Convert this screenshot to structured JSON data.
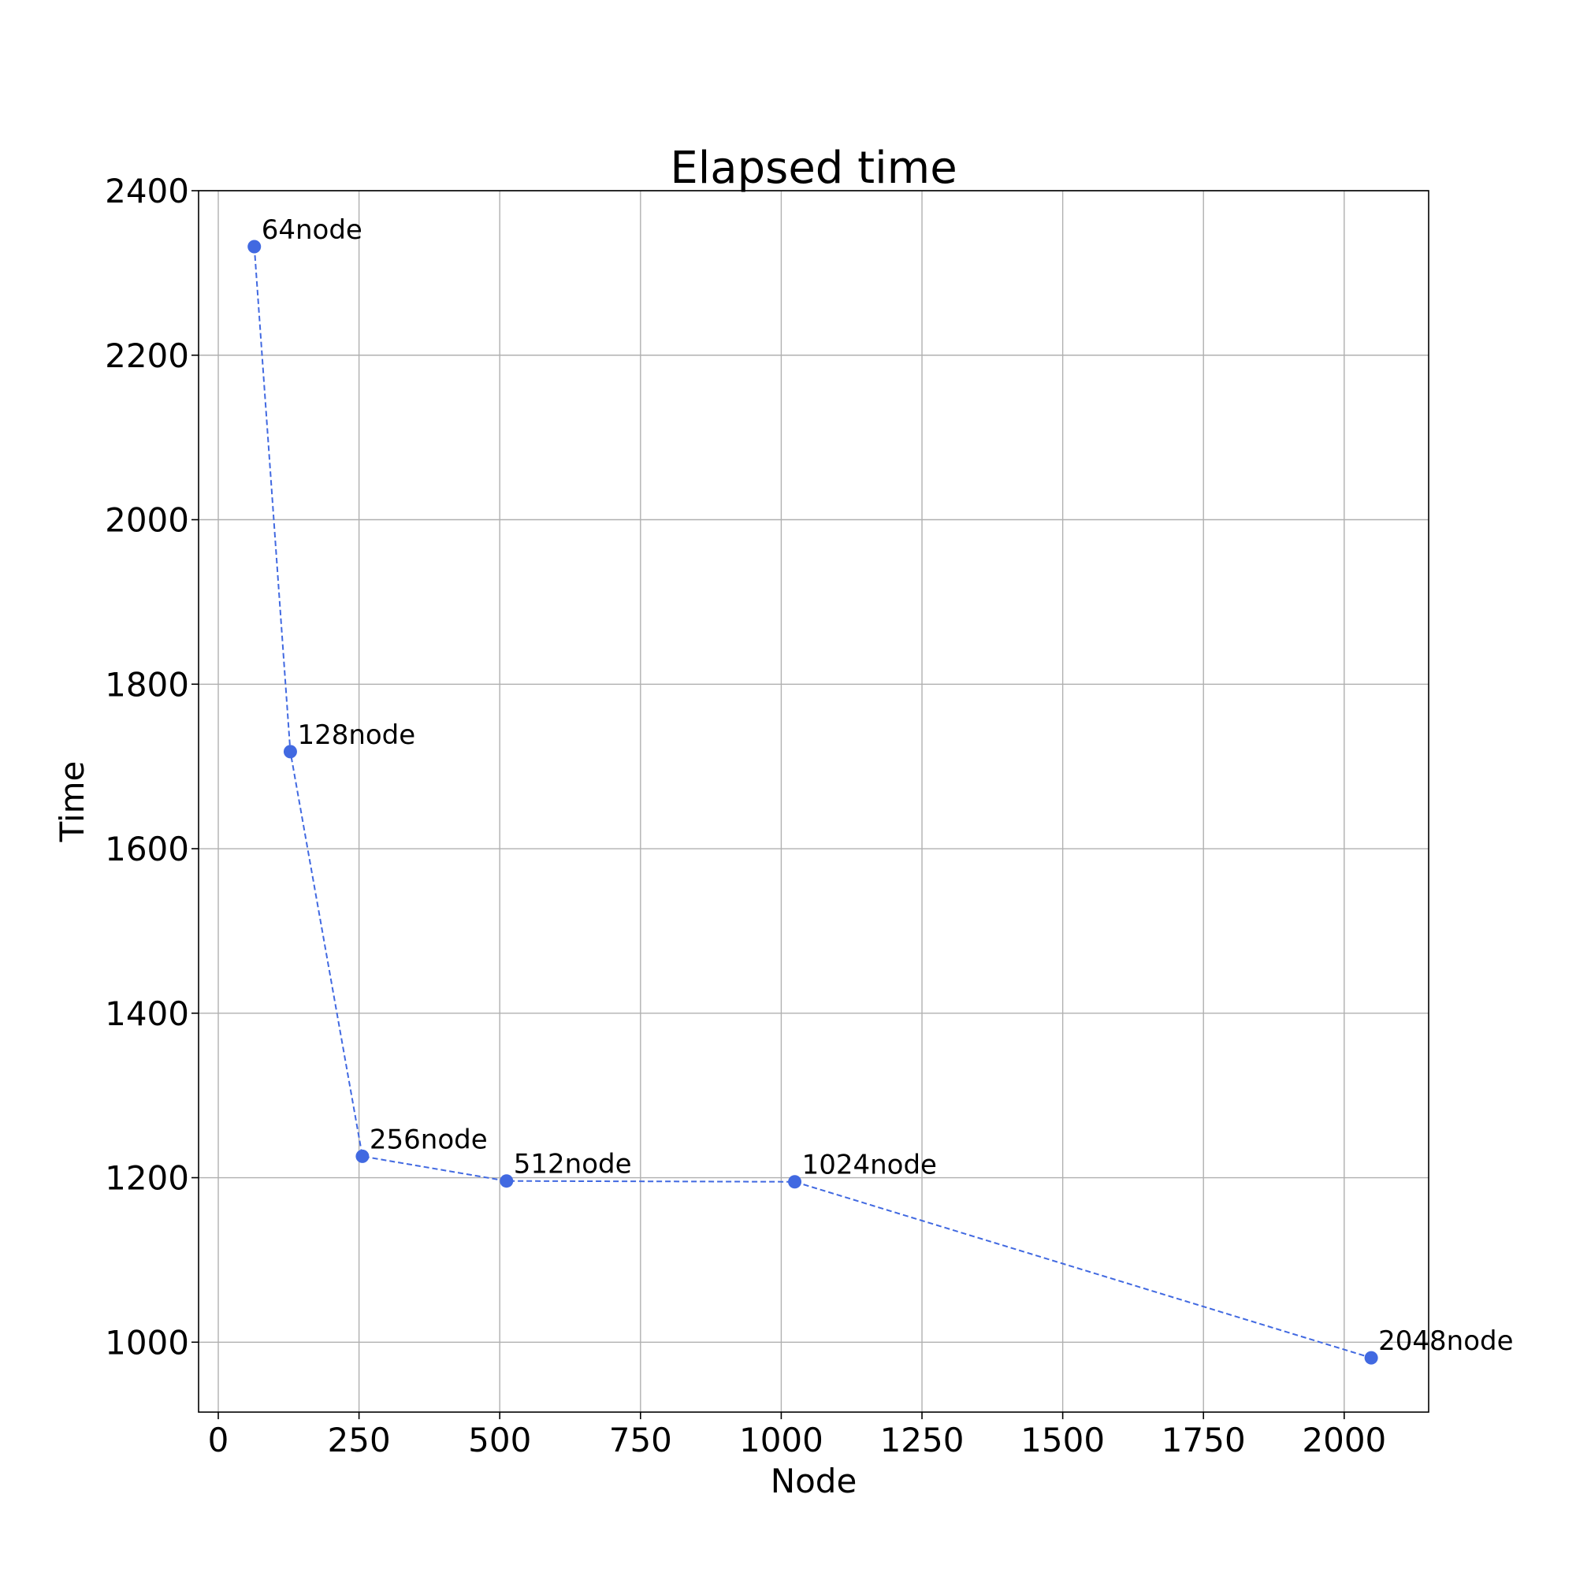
{
  "chart_data": {
    "type": "line",
    "title": "Elapsed time",
    "xlabel": "Node",
    "ylabel": "Time",
    "xlim": [
      -35,
      2150
    ],
    "ylim": [
      915,
      2400
    ],
    "xticks": [
      0,
      250,
      500,
      750,
      1000,
      1250,
      1500,
      1750,
      2000
    ],
    "yticks": [
      1000,
      1200,
      1400,
      1600,
      1800,
      2000,
      2200,
      2400
    ],
    "grid": true,
    "line_style": "dashed",
    "marker": "circle",
    "color": "#4169e1",
    "series": [
      {
        "x": [
          64,
          128,
          256,
          512,
          1024,
          2048
        ],
        "y": [
          2332,
          1718,
          1226,
          1196,
          1195,
          981
        ],
        "labels": [
          "64node",
          "128node",
          "256node",
          "512node",
          "1024node",
          "2048node"
        ]
      }
    ]
  }
}
